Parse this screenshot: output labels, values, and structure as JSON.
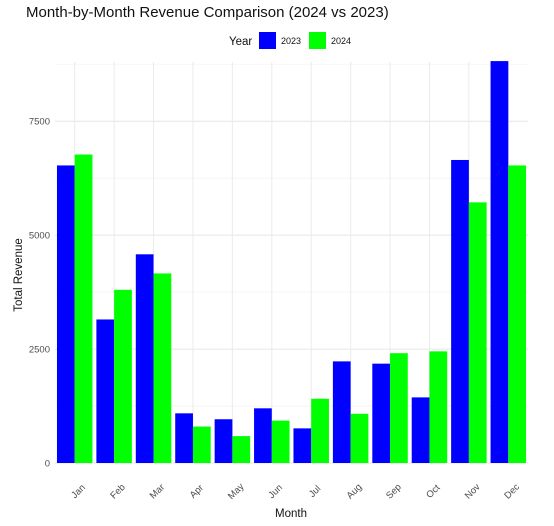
{
  "chart_data": {
    "type": "bar",
    "title": "Month-by-Month Revenue Comparison (2024 vs 2023)",
    "xlabel": "Month",
    "ylabel": "Total Revenue",
    "legend_title": "Year",
    "legend_position": "top",
    "grid": true,
    "ylim": [
      0,
      8800
    ],
    "yticks": [
      0,
      2500,
      5000,
      7500
    ],
    "categories": [
      "Jan",
      "Feb",
      "Mar",
      "Apr",
      "May",
      "Jun",
      "Jul",
      "Aug",
      "Sep",
      "Oct",
      "Nov",
      "Dec"
    ],
    "series": [
      {
        "name": "2023",
        "color": "#0000FF",
        "values": [
          6530,
          3150,
          4580,
          1090,
          960,
          1200,
          760,
          2230,
          2180,
          1440,
          6650,
          8820
        ]
      },
      {
        "name": "2024",
        "color": "#00FF00",
        "values": [
          6770,
          3800,
          4160,
          800,
          590,
          930,
          1410,
          1080,
          2410,
          2450,
          5720,
          6530
        ]
      }
    ]
  }
}
